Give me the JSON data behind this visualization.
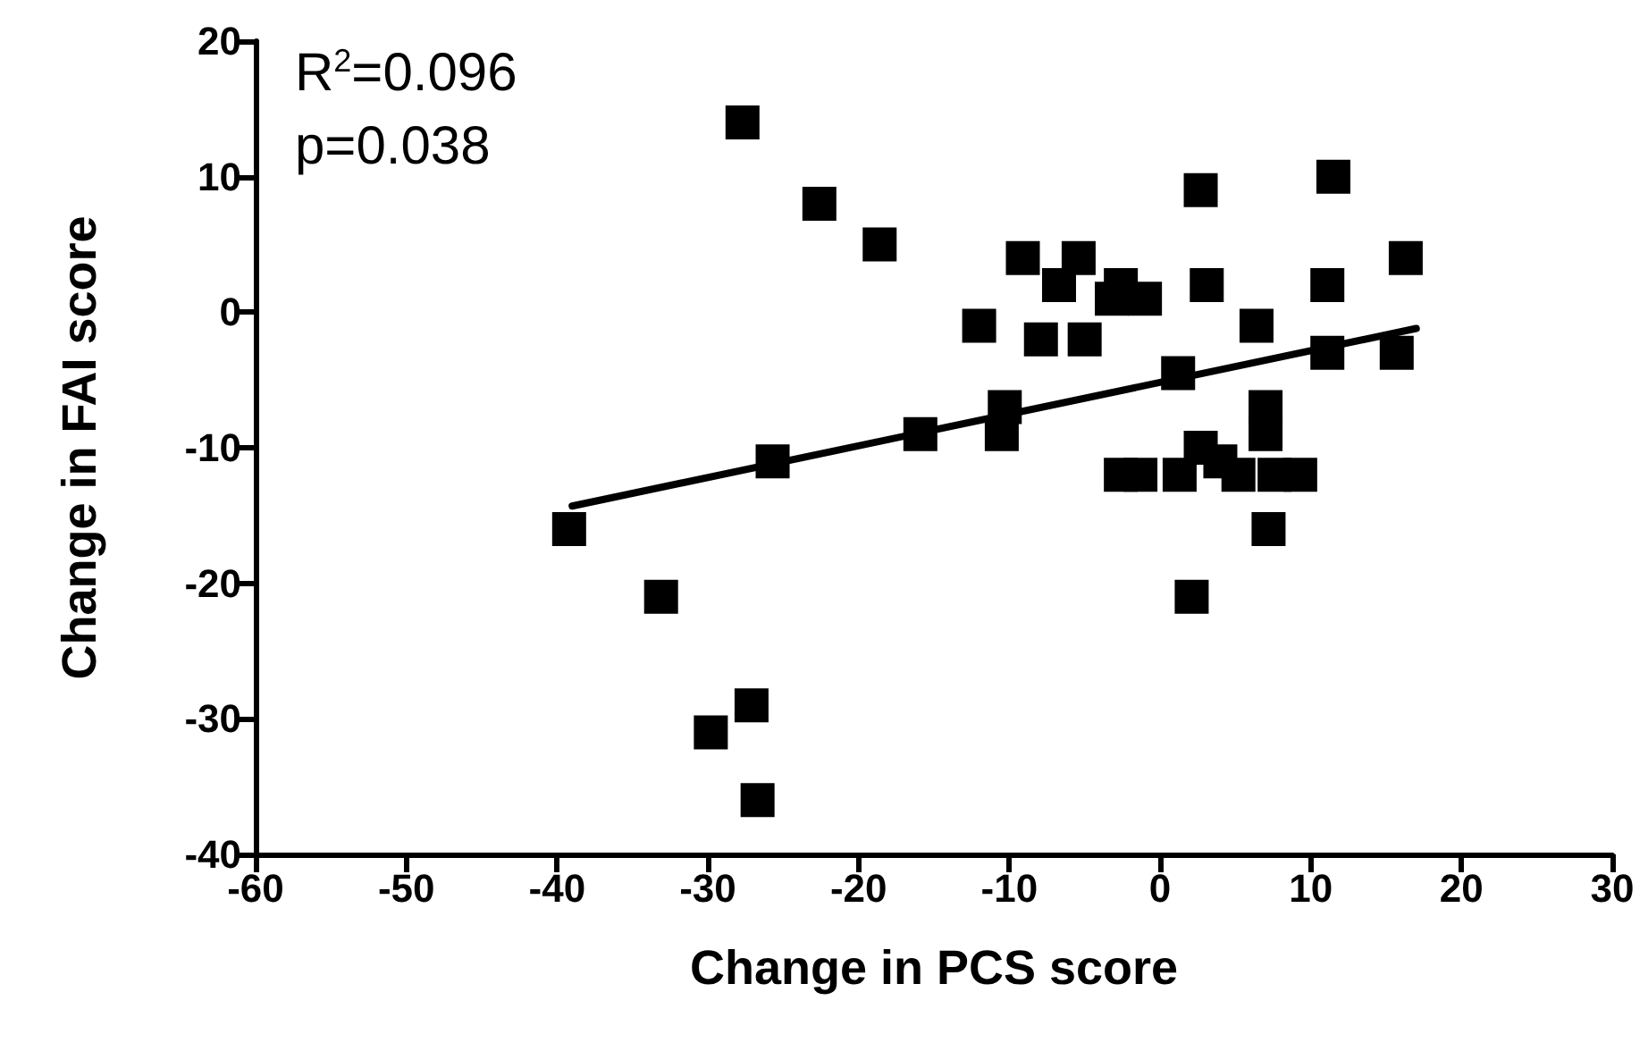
{
  "chart_data": {
    "type": "scatter",
    "xlabel": "Change in PCS score",
    "ylabel": "Change in FAI score",
    "xlim": [
      -60,
      30
    ],
    "ylim": [
      -40,
      20
    ],
    "xticks": [
      -60,
      -50,
      -40,
      -30,
      -20,
      -10,
      0,
      10,
      20,
      30
    ],
    "yticks": [
      -40,
      -30,
      -20,
      -10,
      0,
      10,
      20
    ],
    "grid": false,
    "marker": "square",
    "annotations": [
      "R$^{2}$=0.096",
      "p=0.038"
    ],
    "series": [
      {
        "color": "#000000",
        "x": [
          -27.7,
          -22.6,
          -18.6,
          -12,
          -9.1,
          -6.7,
          -7.9,
          -10.3,
          -10.5,
          -15.9,
          -25.7,
          -39.2,
          -33.1,
          -29.8,
          -27.1,
          -26.7,
          2.7,
          11.5,
          16.3,
          -5.4,
          -3.2,
          -1,
          -2.6,
          3.1,
          11.1,
          -5,
          6.4,
          1.2,
          11.1,
          15.7,
          -2.6,
          -1.3,
          1.3,
          2.7,
          4,
          7,
          7,
          5.2,
          7.6,
          9.3,
          7.2,
          2.1
        ],
        "values": [
          14,
          8,
          5,
          -1,
          4,
          2,
          -2,
          -7,
          -9,
          -9,
          -11,
          -16,
          -21,
          -31,
          -29,
          -36,
          9,
          10,
          4,
          4,
          1,
          1,
          2,
          2,
          2,
          -2,
          -1,
          -4.5,
          -3,
          -3,
          -12,
          -12,
          -12,
          -10,
          -11,
          -7,
          -9,
          -12,
          -12,
          -12,
          -16,
          -21
        ]
      },
      {
        "type": "line",
        "marker": "none",
        "color": "#000000",
        "x": [
          -39,
          17
        ],
        "values": [
          -14.3,
          -1.2
        ]
      }
    ]
  }
}
